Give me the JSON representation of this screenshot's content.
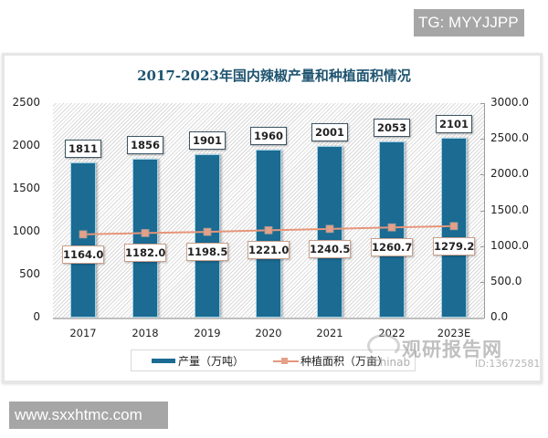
{
  "overlay": {
    "top_tag": "TG: MYYJJPP",
    "bottom_tag": "www.sxxhtmc.com"
  },
  "watermark": {
    "brand_cn": "观研报告网",
    "brand_en": "chinab",
    "id": "ID:13672581"
  },
  "chart_data": {
    "type": "bar",
    "title": "2017-2023年国内辣椒产量和种植面积情况",
    "categories": [
      "2017",
      "2018",
      "2019",
      "2020",
      "2021",
      "2022",
      "2023E"
    ],
    "series": [
      {
        "name": "产量（万吨）",
        "type": "bar",
        "axis": "left",
        "color": "#1b6b93",
        "values": [
          1811,
          1856,
          1901,
          1960,
          2001,
          2053,
          2101
        ]
      },
      {
        "name": "种植面积（万亩）",
        "type": "line",
        "axis": "right",
        "color": "#e5967a",
        "values": [
          1164.0,
          1182.0,
          1198.5,
          1221.0,
          1240.5,
          1260.7,
          1279.2
        ]
      }
    ],
    "left_axis": {
      "ticks": [
        "0",
        "500",
        "1000",
        "1500",
        "2000",
        "2500"
      ],
      "ylim": [
        0,
        2500
      ]
    },
    "right_axis": {
      "ticks": [
        "0.0",
        "500.0",
        "1000.0",
        "1500.0",
        "2000.0",
        "2500.0",
        "3000.0"
      ],
      "ylim": [
        0,
        3000
      ]
    },
    "bar_labels": [
      "1811",
      "1856",
      "1901",
      "1960",
      "2001",
      "2053",
      "2101"
    ],
    "line_labels": [
      "1164.0",
      "1182.0",
      "1198.5",
      "1221.0",
      "1240.5",
      "1260.7",
      "1279.2"
    ],
    "xlabel": "",
    "ylabel": "",
    "grid": false,
    "legend_position": "bottom",
    "legend": [
      "产量（万吨）",
      "种植面积（万亩）"
    ]
  }
}
